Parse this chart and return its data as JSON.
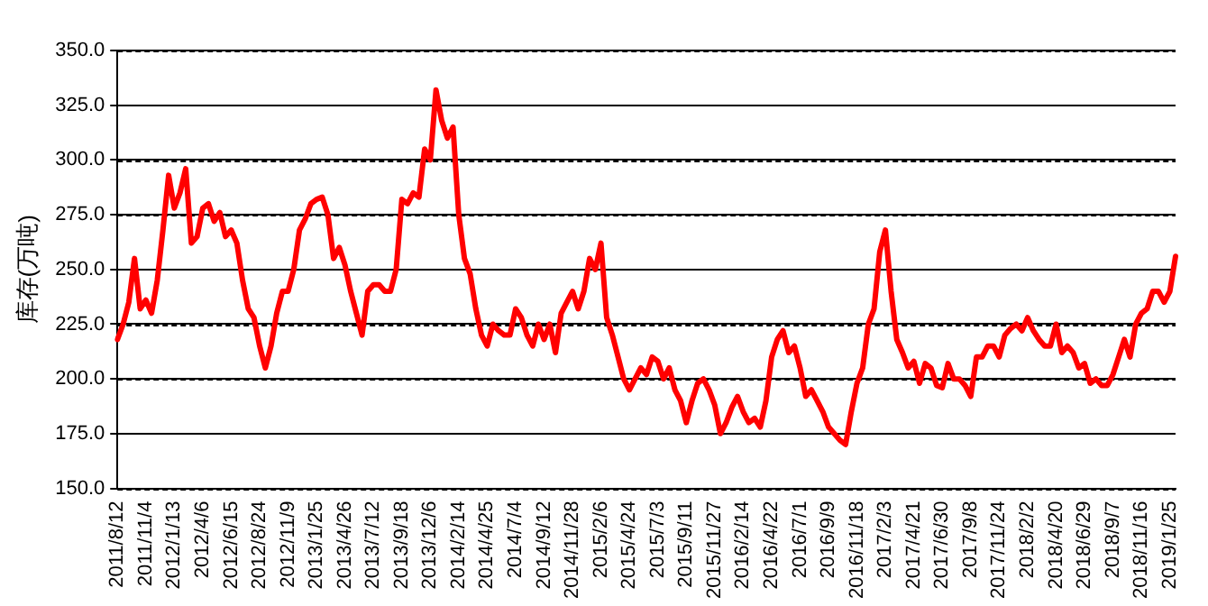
{
  "chart_data": {
    "type": "line",
    "ylabel": "库存(万吨)",
    "categories": [
      "2011/8/12",
      null,
      null,
      null,
      null,
      "2011/11/4",
      null,
      null,
      null,
      null,
      "2012/1/13",
      null,
      null,
      null,
      null,
      "2012/4/6",
      null,
      null,
      null,
      null,
      "2012/6/15",
      null,
      null,
      null,
      null,
      "2012/8/24",
      null,
      null,
      null,
      null,
      "2012/11/9",
      null,
      null,
      null,
      null,
      "2013/1/25",
      null,
      null,
      null,
      null,
      "2013/4/26",
      null,
      null,
      null,
      null,
      "2013/7/12",
      null,
      null,
      null,
      null,
      "2013/9/18",
      null,
      null,
      null,
      null,
      "2013/12/6",
      null,
      null,
      null,
      null,
      "2014/2/14",
      null,
      null,
      null,
      null,
      "2014/4/25",
      null,
      null,
      null,
      null,
      "2014/7/4",
      null,
      null,
      null,
      null,
      "2014/9/12",
      null,
      null,
      null,
      null,
      "2014/11/28",
      null,
      null,
      null,
      null,
      "2015/2/6",
      null,
      null,
      null,
      null,
      "2015/4/24",
      null,
      null,
      null,
      null,
      "2015/7/3",
      null,
      null,
      null,
      null,
      "2015/9/11",
      null,
      null,
      null,
      null,
      "2015/11/27",
      null,
      null,
      null,
      null,
      "2016/2/14",
      null,
      null,
      null,
      null,
      "2016/4/22",
      null,
      null,
      null,
      null,
      "2016/7/1",
      null,
      null,
      null,
      null,
      "2016/9/9",
      null,
      null,
      null,
      null,
      "2016/11/18",
      null,
      null,
      null,
      null,
      "2017/2/3",
      null,
      null,
      null,
      null,
      "2017/4/21",
      null,
      null,
      null,
      null,
      "2017/6/30",
      null,
      null,
      null,
      null,
      "2017/9/8",
      null,
      null,
      null,
      null,
      "2017/11/24",
      null,
      null,
      null,
      null,
      "2018/2/2",
      null,
      null,
      null,
      null,
      "2018/4/20",
      null,
      null,
      null,
      null,
      "2018/6/29",
      null,
      null,
      null,
      null,
      "2018/9/7",
      null,
      null,
      null,
      null,
      "2018/11/16",
      null,
      null,
      null,
      null,
      "2019/1/25",
      null
    ],
    "series": [
      {
        "color": "#ff0000",
        "values": [
          218,
          225,
          235,
          255,
          232,
          236,
          230,
          245,
          268,
          293,
          278,
          285,
          296,
          262,
          265,
          278,
          280,
          272,
          276,
          265,
          268,
          262,
          245,
          232,
          228,
          215,
          205,
          215,
          230,
          240,
          240,
          250,
          268,
          273,
          280,
          282,
          283,
          275,
          255,
          260,
          252,
          240,
          230,
          220,
          240,
          243,
          243,
          240,
          240,
          250,
          282,
          280,
          285,
          283,
          305,
          300,
          332,
          318,
          310,
          315,
          275,
          255,
          248,
          232,
          220,
          215,
          225,
          222,
          220,
          220,
          232,
          228,
          220,
          215,
          225,
          218,
          225,
          212,
          230,
          235,
          240,
          232,
          240,
          255,
          250,
          262,
          228,
          220,
          210,
          200,
          195,
          200,
          205,
          202,
          210,
          208,
          200,
          205,
          195,
          190,
          180,
          190,
          198,
          200,
          195,
          188,
          175,
          180,
          187,
          192,
          185,
          180,
          182,
          178,
          190,
          210,
          218,
          222,
          212,
          215,
          205,
          192,
          195,
          190,
          185,
          178,
          175,
          172,
          170,
          185,
          198,
          205,
          225,
          232,
          258,
          268,
          240,
          218,
          212,
          205,
          208,
          198,
          207,
          205,
          197,
          196,
          207,
          200,
          200,
          197,
          192,
          210,
          210,
          215,
          215,
          210,
          220,
          223,
          225,
          222,
          228,
          222,
          218,
          215,
          215,
          225,
          212,
          215,
          212,
          205,
          207,
          198,
          200,
          197,
          197,
          202,
          210,
          218,
          210,
          225,
          230,
          232,
          240,
          240,
          235,
          240,
          256
        ]
      }
    ],
    "ylim": [
      150,
      350
    ],
    "yticks": [
      {
        "value": 150,
        "label": "150.0"
      },
      {
        "value": 175,
        "label": "175.0"
      },
      {
        "value": 200,
        "label": "200.0"
      },
      {
        "value": 225,
        "label": "225.0"
      },
      {
        "value": 250,
        "label": "250.0"
      },
      {
        "value": 275,
        "label": "275.0"
      },
      {
        "value": 300,
        "label": "300.0"
      },
      {
        "value": 325,
        "label": "325.0"
      },
      {
        "value": 350,
        "label": "350.0"
      }
    ],
    "grid": "y",
    "line_style": "solid",
    "marker": "none",
    "legend": false
  }
}
